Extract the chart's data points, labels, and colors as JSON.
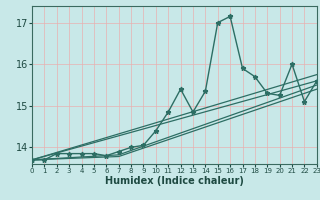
{
  "xlabel": "Humidex (Indice chaleur)",
  "bg_color": "#c8e8e8",
  "grid_color": "#e8b0b0",
  "line_color": "#2d6e64",
  "xlim": [
    0,
    23
  ],
  "ylim": [
    13.6,
    17.4
  ],
  "yticks": [
    14,
    15,
    16,
    17
  ],
  "xticks": [
    0,
    1,
    2,
    3,
    4,
    5,
    6,
    7,
    8,
    9,
    10,
    11,
    12,
    13,
    14,
    15,
    16,
    17,
    18,
    19,
    20,
    21,
    22,
    23
  ],
  "lines": [
    {
      "x": [
        0,
        1,
        2,
        3,
        4,
        5,
        6,
        7,
        8,
        9,
        10,
        11,
        12,
        13,
        14,
        15,
        16,
        17,
        18,
        19,
        20,
        21,
        22,
        23
      ],
      "y": [
        13.7,
        13.7,
        13.85,
        13.85,
        13.85,
        13.85,
        13.8,
        13.9,
        14.0,
        14.05,
        14.4,
        14.85,
        15.4,
        14.85,
        15.35,
        17.0,
        17.15,
        15.9,
        15.7,
        15.3,
        15.25,
        16.0,
        15.1,
        15.6
      ],
      "has_markers": true,
      "lw": 1.0
    },
    {
      "x": [
        0,
        23
      ],
      "y": [
        13.7,
        15.75
      ],
      "has_markers": false,
      "lw": 0.9
    },
    {
      "x": [
        0,
        23
      ],
      "y": [
        13.7,
        15.6
      ],
      "has_markers": false,
      "lw": 0.9
    },
    {
      "x": [
        0,
        7,
        23
      ],
      "y": [
        13.7,
        13.82,
        15.5
      ],
      "has_markers": false,
      "lw": 0.9
    },
    {
      "x": [
        0,
        7,
        23
      ],
      "y": [
        13.7,
        13.78,
        15.4
      ],
      "has_markers": false,
      "lw": 0.9
    }
  ]
}
